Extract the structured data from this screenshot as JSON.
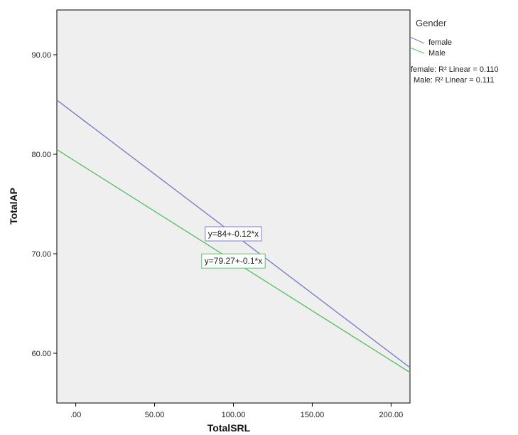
{
  "chart_data": {
    "type": "line",
    "title": "",
    "xlabel": "TotalSRL",
    "ylabel": "TotalAP",
    "xlim": [
      -12,
      212
    ],
    "ylim": [
      55,
      94.5
    ],
    "x_ticks": [
      0,
      50,
      100,
      150,
      200
    ],
    "x_tick_labels": [
      ".00",
      "50.00",
      "100.00",
      "150.00",
      "200.00"
    ],
    "y_ticks": [
      60,
      70,
      80,
      90
    ],
    "y_tick_labels": [
      "60.00",
      "70.00",
      "80.00",
      "90.00"
    ],
    "grid": false,
    "legend": {
      "title": "Gender",
      "position": "right",
      "r2_labels": [
        "female: R² Linear = 0.110",
        "Male: R² Linear = 0.111"
      ]
    },
    "series": [
      {
        "name": "female",
        "color": "#7b7fc8",
        "intercept": 84,
        "slope": -0.12,
        "x": [
          -12,
          212
        ],
        "y": [
          85.44,
          58.56
        ],
        "equation": "y=84+-0.12*x",
        "equation_anchor_x": 100,
        "r2_label": "female: R² Linear = 0.110"
      },
      {
        "name": "Male",
        "color": "#5cc16a",
        "intercept": 79.27,
        "slope": -0.1,
        "x": [
          -12,
          212
        ],
        "y": [
          80.47,
          58.07
        ],
        "equation": "y=79.27+-0.1*x",
        "equation_anchor_x": 100,
        "r2_label": "Male: R² Linear = 0.111"
      }
    ]
  }
}
